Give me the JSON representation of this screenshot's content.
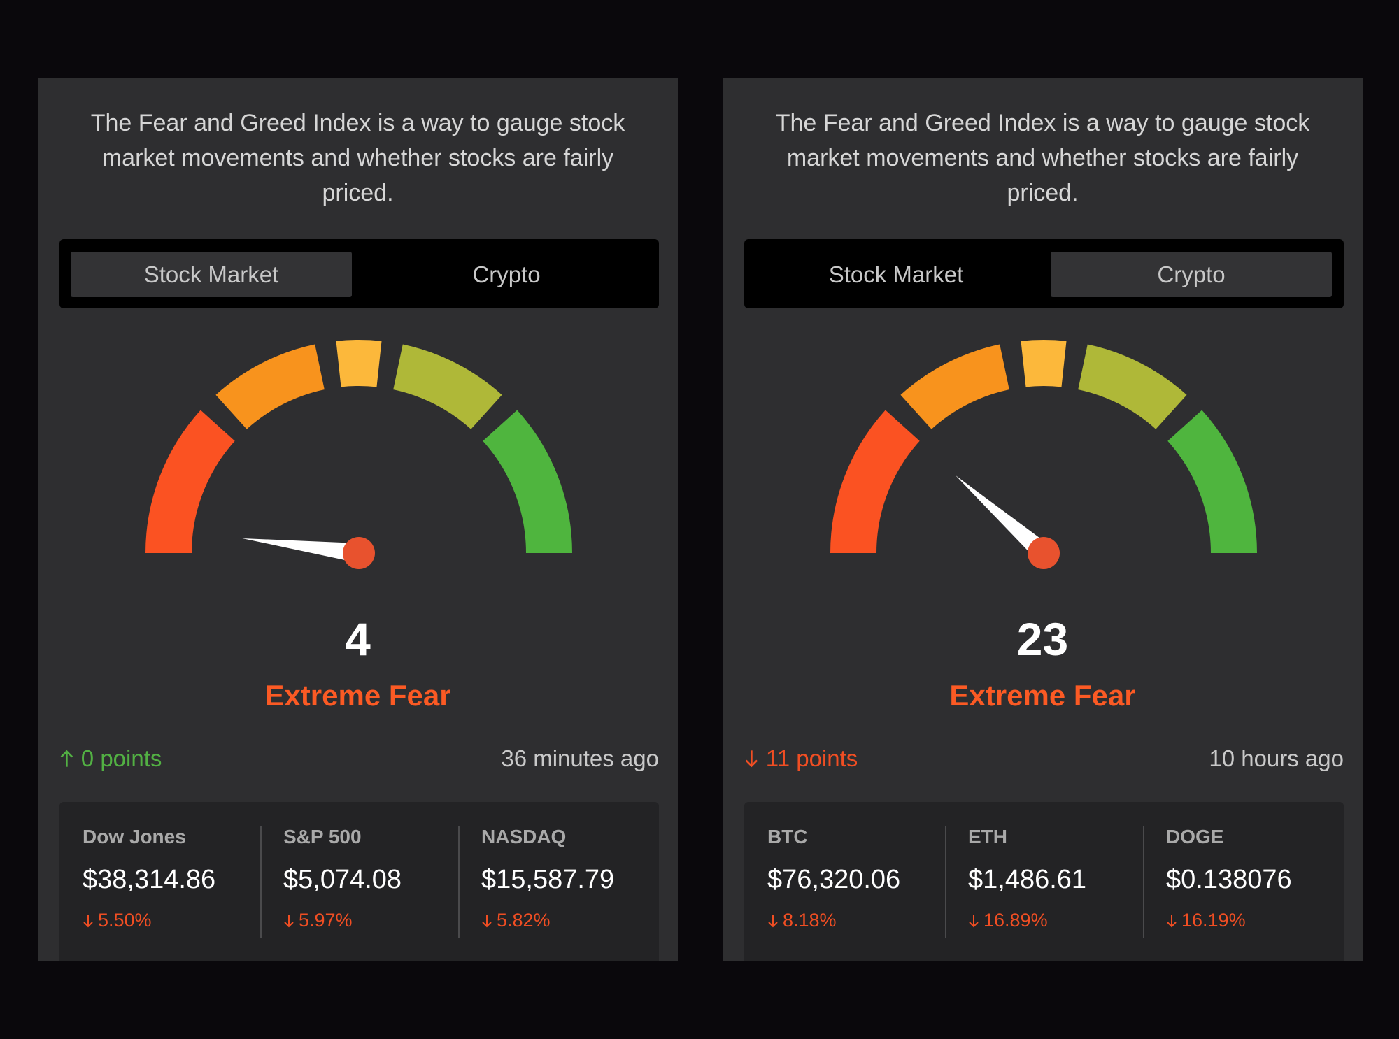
{
  "panels": [
    {
      "description": "The Fear and Greed Index is a way to gauge stock market movements and whether stocks are fairly priced.",
      "tabs": [
        "Stock Market",
        "Crypto"
      ],
      "active_tab": 0,
      "index": {
        "value": 4,
        "rating": "Extreme Fear"
      },
      "change": {
        "text": "0 points",
        "direction": "up"
      },
      "updated": "36 minutes ago",
      "tickers": [
        {
          "name": "Dow Jones",
          "price": "$38,314.86",
          "change": "5.50%",
          "direction": "down"
        },
        {
          "name": "S&P 500",
          "price": "$5,074.08",
          "change": "5.97%",
          "direction": "down"
        },
        {
          "name": "NASDAQ",
          "price": "$15,587.79",
          "change": "5.82%",
          "direction": "down"
        }
      ]
    },
    {
      "description": "The Fear and Greed Index is a way to gauge stock market movements and whether stocks are fairly priced.",
      "tabs": [
        "Stock Market",
        "Crypto"
      ],
      "active_tab": 1,
      "index": {
        "value": 23,
        "rating": "Extreme Fear"
      },
      "change": {
        "text": "11 points",
        "direction": "down"
      },
      "updated": "10 hours ago",
      "tickers": [
        {
          "name": "BTC",
          "price": "$76,320.06",
          "change": "8.18%",
          "direction": "down"
        },
        {
          "name": "ETH",
          "price": "$1,486.61",
          "change": "16.89%",
          "direction": "down"
        },
        {
          "name": "DOGE",
          "price": "$0.138076",
          "change": "16.19%",
          "direction": "down"
        }
      ]
    }
  ]
}
